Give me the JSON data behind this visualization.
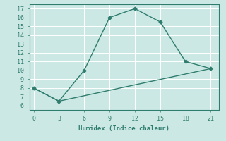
{
  "line1_x": [
    0,
    3,
    6,
    9,
    12,
    15,
    18,
    21
  ],
  "line1_y": [
    8,
    6.5,
    10,
    16,
    17,
    15.5,
    11,
    10.2
  ],
  "line2_x": [
    0,
    3,
    21
  ],
  "line2_y": [
    8,
    6.5,
    10.2
  ],
  "line_color": "#2e7d6e",
  "bg_color": "#cce8e4",
  "grid_color": "#ffffff",
  "xlabel": "Humidex (Indice chaleur)",
  "xlim": [
    -0.5,
    22
  ],
  "ylim": [
    5.5,
    17.5
  ],
  "xticks": [
    0,
    3,
    6,
    9,
    12,
    15,
    18,
    21
  ],
  "yticks": [
    6,
    7,
    8,
    9,
    10,
    11,
    12,
    13,
    14,
    15,
    16,
    17
  ],
  "marker": "D",
  "markersize": 2.5,
  "linewidth": 1.0,
  "font_color": "#2e7d6e",
  "font_size_tick": 6,
  "font_size_xlabel": 6.5
}
